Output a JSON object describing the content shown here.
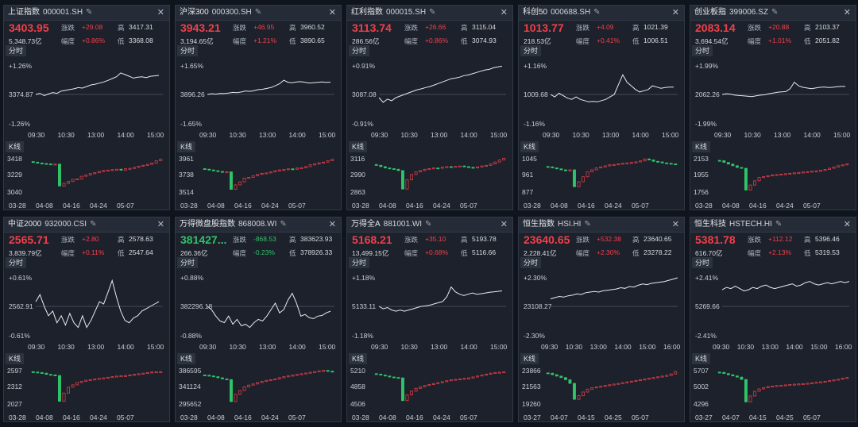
{
  "labels": {
    "change": "涨跌",
    "pct": "幅度",
    "high": "高",
    "low": "低",
    "intraday_tab": "分时",
    "kline_tab": "K线"
  },
  "colors": {
    "up": "#f0404a",
    "down": "#2fc46a",
    "line": "#e8eaed",
    "zero": "#6e7785",
    "bg": "#1c212b"
  },
  "icons": {
    "edit": "pencil-icon",
    "close": "close-icon"
  },
  "panels": [
    {
      "name": "上证指数",
      "code": "000001.SH",
      "price": "3403.95",
      "dir": "up",
      "change": "+29.08",
      "volume": "5,348.73亿",
      "pct": "+0.86%",
      "high": "3417.31",
      "low": "3368.08",
      "intraday": {
        "top": "+1.26%",
        "mid": "3374.87",
        "bot": "-1.26%",
        "times": [
          "09:30",
          "10:30",
          "13:00",
          "14:00",
          "15:00"
        ],
        "series": [
          0,
          0.05,
          -0.05,
          0.02,
          0.08,
          0.05,
          0.15,
          0.18,
          0.22,
          0.25,
          0.3,
          0.28,
          0.35,
          0.42,
          0.45,
          0.5,
          0.55,
          0.62,
          0.7,
          0.78,
          0.95,
          0.88,
          0.8,
          0.72,
          0.76,
          0.78,
          0.74,
          0.8,
          0.82,
          0.84
        ]
      },
      "kline": {
        "axis": [
          "3418",
          "3229",
          "3040"
        ],
        "dates": [
          "03-28",
          "04-08",
          "04-16",
          "04-24",
          "05-07"
        ],
        "closes": [
          3370,
          3360,
          3355,
          3350,
          3345,
          3348,
          3100,
          3130,
          3150,
          3175,
          3180,
          3210,
          3225,
          3240,
          3250,
          3265,
          3275,
          3280,
          3285,
          3290,
          3280,
          3295,
          3300,
          3310,
          3325,
          3335,
          3345,
          3360,
          3385,
          3404
        ]
      }
    },
    {
      "name": "沪深300",
      "code": "000300.SH",
      "price": "3943.21",
      "dir": "up",
      "change": "+46.95",
      "volume": "3,194.65亿",
      "pct": "+1.21%",
      "high": "3960.52",
      "low": "3890.65",
      "intraday": {
        "top": "+1.65%",
        "mid": "3896.26",
        "bot": "-1.65%",
        "times": [
          "09:30",
          "10:30",
          "13:00",
          "14:00",
          "15:00"
        ],
        "series": [
          0,
          0.04,
          0.02,
          0.06,
          0.05,
          0.08,
          0.12,
          0.1,
          0.14,
          0.2,
          0.18,
          0.22,
          0.28,
          0.3,
          0.35,
          0.4,
          0.5,
          0.62,
          0.82,
          0.7,
          0.68,
          0.72,
          0.74,
          0.7,
          0.66,
          0.68,
          0.7,
          0.72,
          0.7,
          0.71
        ]
      },
      "kline": {
        "axis": [
          "3961",
          "3738",
          "3514"
        ],
        "dates": [
          "03-28",
          "04-08",
          "04-16",
          "04-24",
          "05-07"
        ],
        "closes": [
          3810,
          3800,
          3790,
          3780,
          3770,
          3775,
          3540,
          3600,
          3640,
          3690,
          3700,
          3720,
          3740,
          3755,
          3760,
          3775,
          3790,
          3800,
          3805,
          3815,
          3810,
          3825,
          3830,
          3845,
          3870,
          3880,
          3895,
          3905,
          3925,
          3943
        ]
      }
    },
    {
      "name": "红利指数",
      "code": "000015.SH",
      "price": "3113.74",
      "dir": "up",
      "change": "+26.66",
      "volume": "286.56亿",
      "pct": "+0.86%",
      "high": "3115.04",
      "low": "3074.93",
      "intraday": {
        "top": "+0.91%",
        "mid": "3087.08",
        "bot": "-0.91%",
        "times": [
          "09:30",
          "10:30",
          "13:00",
          "14:00",
          "15:00"
        ],
        "series": [
          -0.1,
          -0.25,
          -0.15,
          -0.2,
          -0.1,
          -0.05,
          0,
          0.05,
          0.1,
          0.15,
          0.18,
          0.22,
          0.25,
          0.3,
          0.35,
          0.4,
          0.45,
          0.5,
          0.52,
          0.55,
          0.6,
          0.62,
          0.66,
          0.7,
          0.74,
          0.78,
          0.8,
          0.85,
          0.88,
          0.9
        ]
      },
      "kline": {
        "axis": [
          "3116",
          "2990",
          "2863"
        ],
        "dates": [
          "03-28",
          "04-08",
          "04-16",
          "04-24",
          "05-07"
        ],
        "closes": [
          3060,
          3050,
          3040,
          3035,
          3030,
          3020,
          2880,
          2950,
          2990,
          3010,
          3020,
          3030,
          3035,
          3040,
          3038,
          3045,
          3050,
          3048,
          3052,
          3055,
          3050,
          3045,
          3040,
          3048,
          3055,
          3060,
          3070,
          3085,
          3100,
          3114
        ]
      }
    },
    {
      "name": "科创50",
      "code": "000688.SH",
      "price": "1013.77",
      "dir": "up",
      "change": "+4.09",
      "volume": "218.53亿",
      "pct": "+0.41%",
      "high": "1021.39",
      "low": "1006.51",
      "intraday": {
        "top": "+1.16%",
        "mid": "1009.68",
        "bot": "-1.16%",
        "times": [
          "09:30",
          "10:30",
          "13:00",
          "14:00",
          "15:00"
        ],
        "series": [
          0,
          -0.1,
          0.05,
          -0.05,
          -0.15,
          -0.2,
          -0.1,
          -0.2,
          -0.25,
          -0.3,
          -0.28,
          -0.3,
          -0.25,
          -0.2,
          -0.1,
          0,
          0.4,
          0.8,
          0.5,
          0.35,
          0.2,
          0.1,
          0.15,
          0.2,
          0.35,
          0.3,
          0.25,
          0.28,
          0.3,
          0.3
        ]
      },
      "kline": {
        "axis": [
          "1045",
          "961",
          "877"
        ],
        "dates": [
          "03-28",
          "04-08",
          "04-16",
          "04-24",
          "05-07"
        ],
        "closes": [
          1000,
          995,
          990,
          985,
          980,
          985,
          900,
          925,
          950,
          975,
          985,
          995,
          1000,
          1005,
          1010,
          1012,
          1015,
          1018,
          1020,
          1022,
          1025,
          1030,
          1040,
          1035,
          1028,
          1025,
          1020,
          1018,
          1015,
          1014
        ]
      }
    },
    {
      "name": "创业板指",
      "code": "399006.SZ",
      "price": "2083.14",
      "dir": "up",
      "change": "+20.88",
      "volume": "3,694.54亿",
      "pct": "+1.01%",
      "high": "2103.37",
      "low": "2051.82",
      "intraday": {
        "top": "+1.99%",
        "mid": "2062.26",
        "bot": "-1.99%",
        "times": [
          "09:30",
          "10:30",
          "13:00",
          "14:00",
          "15:00"
        ],
        "series": [
          0,
          0.05,
          0.02,
          -0.05,
          -0.08,
          -0.1,
          -0.12,
          -0.15,
          -0.1,
          -0.05,
          -0.02,
          0.05,
          0.1,
          0.15,
          0.18,
          0.2,
          0.4,
          0.85,
          0.6,
          0.5,
          0.45,
          0.4,
          0.45,
          0.5,
          0.52,
          0.48,
          0.5,
          0.54,
          0.56,
          0.56
        ]
      },
      "kline": {
        "axis": [
          "2153",
          "1955",
          "1756"
        ],
        "dates": [
          "03-28",
          "04-08",
          "04-16",
          "04-24",
          "05-07"
        ],
        "closes": [
          2120,
          2100,
          2080,
          2060,
          2040,
          2030,
          1770,
          1830,
          1880,
          1920,
          1930,
          1940,
          1950,
          1955,
          1960,
          1965,
          1970,
          1975,
          1980,
          1985,
          1990,
          1995,
          2000,
          2005,
          2015,
          2030,
          2045,
          2060,
          2070,
          2083
        ]
      }
    },
    {
      "name": "中证2000",
      "code": "932000.CSI",
      "price": "2565.71",
      "dir": "up",
      "change": "+2.80",
      "volume": "3,839.79亿",
      "pct": "+0.11%",
      "high": "2578.63",
      "low": "2547.64",
      "intraday": {
        "top": "+0.61%",
        "mid": "2562.91",
        "bot": "-0.61%",
        "times": [
          "09:30",
          "10:30",
          "13:00",
          "14:00",
          "15:00"
        ],
        "series": [
          0.1,
          0.25,
          0,
          -0.2,
          -0.1,
          -0.35,
          -0.2,
          -0.4,
          -0.15,
          -0.35,
          -0.45,
          -0.2,
          -0.45,
          -0.3,
          -0.1,
          0.1,
          0.05,
          0.3,
          0.55,
          0.2,
          -0.1,
          -0.3,
          -0.35,
          -0.25,
          -0.2,
          -0.1,
          -0.05,
          0,
          0.05,
          0.1
        ]
      },
      "kline": {
        "axis": [
          "2597",
          "2312",
          "2027"
        ],
        "dates": [
          "03-28",
          "04-08",
          "04-16",
          "04-24",
          "05-07"
        ],
        "closes": [
          2560,
          2550,
          2540,
          2520,
          2510,
          2500,
          2060,
          2200,
          2300,
          2340,
          2380,
          2400,
          2420,
          2430,
          2440,
          2450,
          2460,
          2470,
          2480,
          2490,
          2495,
          2500,
          2510,
          2520,
          2530,
          2540,
          2550,
          2560,
          2563,
          2566
        ]
      }
    },
    {
      "name": "万得微盘股指数",
      "code": "868008.WI",
      "price": "381427...",
      "dir": "dn",
      "change": "-868.53",
      "volume": "266.36亿",
      "pct": "-0.23%",
      "high": "383623.93",
      "low": "378926.33",
      "intraday": {
        "top": "+0.88%",
        "mid": "382296.18",
        "bot": "-0.88%",
        "times": [
          "09:30",
          "10:30",
          "13:00",
          "14:00",
          "15:00"
        ],
        "series": [
          0,
          -0.1,
          -0.3,
          -0.45,
          -0.5,
          -0.3,
          -0.55,
          -0.4,
          -0.6,
          -0.55,
          -0.65,
          -0.5,
          -0.4,
          -0.45,
          -0.3,
          -0.1,
          0.1,
          -0.2,
          -0.1,
          0.2,
          0.4,
          0.1,
          -0.3,
          -0.25,
          -0.35,
          -0.38,
          -0.3,
          -0.28,
          -0.2,
          -0.15
        ]
      },
      "kline": {
        "axis": [
          "386595",
          "341124",
          "295652"
        ],
        "dates": [
          "03-28",
          "04-08",
          "04-16",
          "04-24",
          "05-07"
        ],
        "closes": [
          372000,
          370000,
          368000,
          365000,
          362000,
          360000,
          300000,
          320000,
          330000,
          340000,
          345000,
          348000,
          352000,
          355000,
          358000,
          360000,
          362000,
          365000,
          368000,
          370000,
          372000,
          374000,
          376000,
          378000,
          380000,
          382000,
          384000,
          385000,
          383000,
          381427
        ]
      }
    },
    {
      "name": "万得全A",
      "code": "881001.WI",
      "price": "5168.21",
      "dir": "up",
      "change": "+35.10",
      "volume": "13,499.15亿",
      "pct": "+0.68%",
      "high": "5193.78",
      "low": "5116.66",
      "intraday": {
        "top": "+1.18%",
        "mid": "5133.11",
        "bot": "-1.18%",
        "times": [
          "09:30",
          "10:30",
          "13:00",
          "14:00",
          "15:00"
        ],
        "series": [
          0,
          -0.1,
          -0.05,
          -0.15,
          -0.2,
          -0.15,
          -0.2,
          -0.15,
          -0.1,
          -0.05,
          0,
          0.02,
          0.05,
          0.1,
          0.15,
          0.2,
          0.4,
          0.8,
          0.6,
          0.5,
          0.45,
          0.5,
          0.55,
          0.5,
          0.52,
          0.55,
          0.58,
          0.6,
          0.62,
          0.64
        ]
      },
      "kline": {
        "axis": [
          "5210",
          "4858",
          "4506"
        ],
        "dates": [
          "03-28",
          "04-08",
          "04-16",
          "04-24",
          "05-07"
        ],
        "closes": [
          5120,
          5100,
          5080,
          5060,
          5050,
          5040,
          4560,
          4680,
          4760,
          4820,
          4850,
          4880,
          4900,
          4920,
          4940,
          4960,
          4980,
          5000,
          5010,
          5020,
          5030,
          5040,
          5060,
          5080,
          5100,
          5120,
          5140,
          5155,
          5160,
          5168
        ]
      }
    },
    {
      "name": "恒生指数",
      "code": "HSI.HI",
      "price": "23640.65",
      "dir": "up",
      "change": "+532.38",
      "volume": "2,228.41亿",
      "pct": "+2.30%",
      "high": "23640.65",
      "low": "23278.22",
      "intraday": {
        "top": "+2.30%",
        "mid": "23108.27",
        "bot": "-2.30%",
        "times": [
          "09:30",
          "10:30",
          "13:00",
          "14:00",
          "15:00",
          "16:00"
        ],
        "series": [
          0.6,
          0.7,
          0.8,
          0.75,
          0.85,
          0.9,
          1.0,
          0.95,
          1.1,
          1.15,
          1.2,
          1.15,
          1.25,
          1.3,
          1.35,
          1.4,
          1.5,
          1.45,
          1.6,
          1.55,
          1.7,
          1.8,
          1.75,
          1.85,
          1.9,
          1.95,
          2.0,
          2.1,
          2.2,
          2.3
        ]
      },
      "kline": {
        "axis": [
          "23866",
          "21563",
          "19260"
        ],
        "dates": [
          "03-27",
          "04-07",
          "04-15",
          "04-25",
          "05-07"
        ],
        "closes": [
          23400,
          23200,
          23000,
          22800,
          22500,
          22000,
          19800,
          20300,
          20800,
          21200,
          21400,
          21500,
          21600,
          21700,
          21800,
          21900,
          22000,
          22100,
          22200,
          22300,
          22400,
          22500,
          22600,
          22700,
          22800,
          22900,
          23000,
          23100,
          23300,
          23640
        ]
      }
    },
    {
      "name": "恒生科技",
      "code": "HSTECH.HI",
      "price": "5381.78",
      "dir": "up",
      "change": "+112.12",
      "volume": "616.70亿",
      "pct": "+2.13%",
      "high": "5396.46",
      "low": "5319.53",
      "intraday": {
        "top": "+2.41%",
        "mid": "5269.66",
        "bot": "-2.41%",
        "times": [
          "09:30",
          "10:30",
          "13:00",
          "14:00",
          "15:00",
          "16:00"
        ],
        "series": [
          1.4,
          1.6,
          1.5,
          1.7,
          1.5,
          1.3,
          1.4,
          1.6,
          1.5,
          1.7,
          1.8,
          1.6,
          1.5,
          1.6,
          1.7,
          1.8,
          1.9,
          1.7,
          1.8,
          2.0,
          2.1,
          1.9,
          1.8,
          1.9,
          2.0,
          1.9,
          2.0,
          2.1,
          2.0,
          2.1
        ]
      },
      "kline": {
        "axis": [
          "5707",
          "5002",
          "4296"
        ],
        "dates": [
          "03-27",
          "04-07",
          "04-15",
          "04-25",
          "05-07"
        ],
        "closes": [
          5600,
          5550,
          5500,
          5450,
          5400,
          5300,
          4350,
          4600,
          4800,
          4900,
          4950,
          5000,
          5020,
          5040,
          5050,
          5070,
          5090,
          5100,
          5110,
          5120,
          5140,
          5160,
          5180,
          5200,
          5220,
          5250,
          5280,
          5310,
          5350,
          5382
        ]
      }
    }
  ]
}
